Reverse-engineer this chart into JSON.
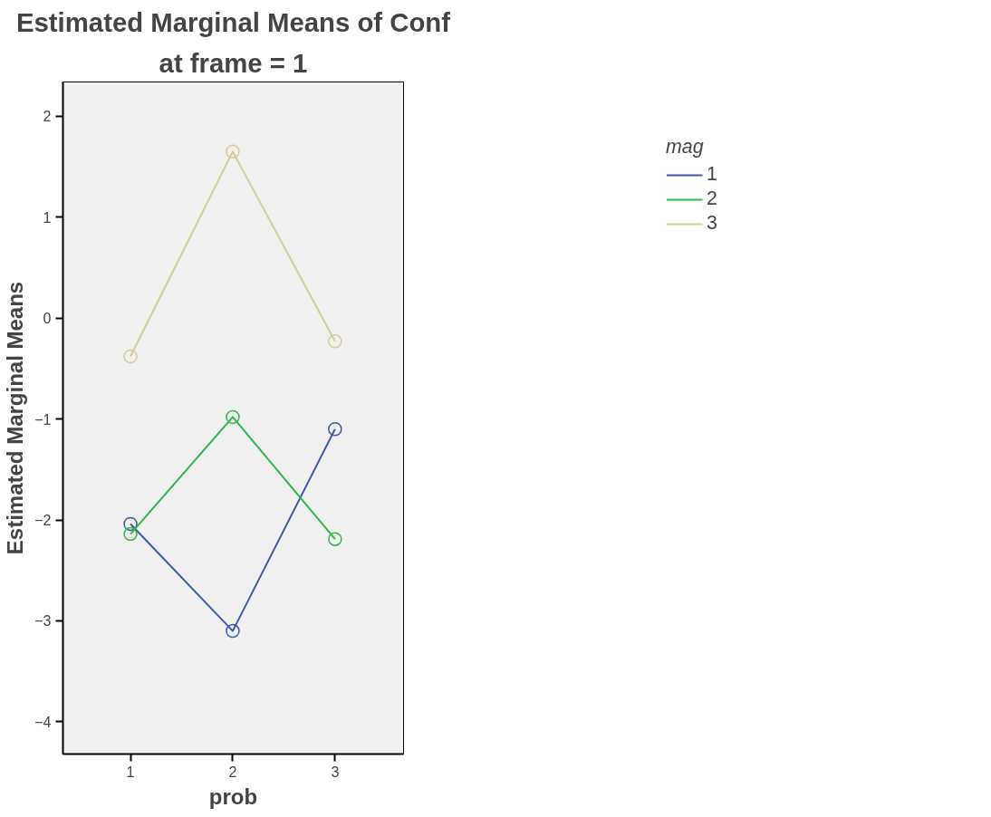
{
  "chart_data": {
    "type": "line",
    "title": "Estimated Marginal Means of Conf",
    "subtitle": "at frame = 1",
    "xlabel": "prob",
    "ylabel": "Estimated Marginal Means",
    "legend_title": "mag",
    "x": [
      1,
      2,
      3
    ],
    "series": [
      {
        "name": "1",
        "color": "#3e58ac",
        "values": [
          -2.04,
          -3.1,
          -1.1
        ]
      },
      {
        "name": "2",
        "color": "#2eb848",
        "values": [
          -2.14,
          -0.98,
          -2.19
        ]
      },
      {
        "name": "3",
        "color": "#d3ce97",
        "values": [
          -0.38,
          1.65,
          -0.23
        ]
      }
    ],
    "xlim": [
      0.34,
      3.67
    ],
    "xticks": [
      1,
      2,
      3
    ],
    "ylim": [
      -4.32,
      2.34
    ],
    "yticks": [
      -4,
      -3,
      -2,
      -1,
      0,
      1,
      2
    ],
    "grid": false,
    "legend": "right",
    "marker": "circle",
    "line_style": "solid"
  }
}
